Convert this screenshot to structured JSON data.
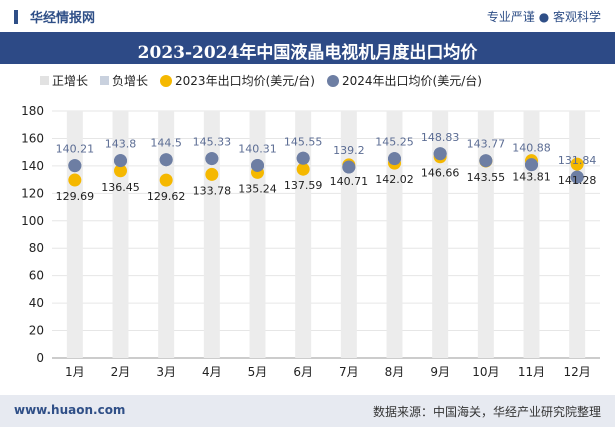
{
  "header": {
    "brand": "华经情报网",
    "tagline": "专业严谨 ● 客观科学"
  },
  "footer": {
    "website": "www.huaon.com",
    "source": "数据来源：中国海关，华经产业研究院整理"
  },
  "colors": {
    "header_bar": "#2d4a86",
    "series_2023": "#f5b800",
    "series_2024": "#6d7ea3",
    "positive_bar": "#e8e8e8",
    "negative_bar": "#c9d1de"
  },
  "chart_data": {
    "type": "line",
    "title": "2023-2024年中国液晶电视机月度出口均价",
    "categories": [
      "1月",
      "2月",
      "3月",
      "4月",
      "5月",
      "6月",
      "7月",
      "8月",
      "9月",
      "10月",
      "11月",
      "12月"
    ],
    "ylim": [
      0,
      180
    ],
    "yticks": [
      0,
      20,
      40,
      60,
      80,
      100,
      120,
      140,
      160,
      180
    ],
    "legend": [
      "正增长",
      "负增长",
      "2023年出口均价(美元/台)",
      "2024年出口均价(美元/台)"
    ],
    "legend_position": "top-left",
    "series": [
      {
        "name": "2023年出口均价(美元/台)",
        "values": [
          129.69,
          136.45,
          129.62,
          133.78,
          135.24,
          137.59,
          140.71,
          142.02,
          146.66,
          143.55,
          143.81,
          141.28
        ]
      },
      {
        "name": "2024年出口均价(美元/台)",
        "values": [
          140.21,
          143.8,
          144.5,
          145.33,
          140.31,
          145.55,
          139.2,
          145.25,
          148.83,
          143.77,
          140.88,
          131.84
        ]
      }
    ]
  }
}
